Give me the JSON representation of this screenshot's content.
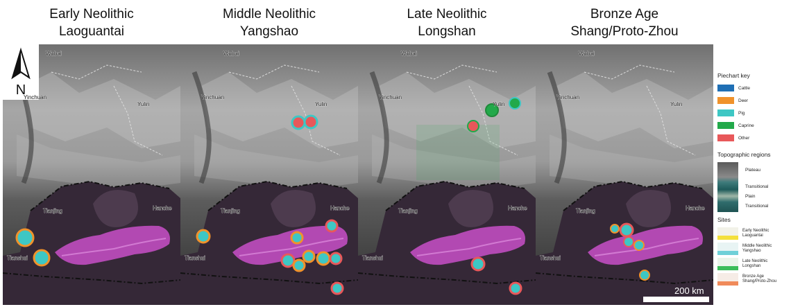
{
  "panels": [
    {
      "title_line1": "Early Neolithic",
      "title_line2": "Laoguantai"
    },
    {
      "title_line1": "Middle Neolithic",
      "title_line2": "Yangshao"
    },
    {
      "title_line1": "Late Neolithic",
      "title_line2": "Longshan"
    },
    {
      "title_line1": "Bronze Age",
      "title_line2": "Shang/Proto-Zhou"
    }
  ],
  "north_arrow": {
    "label": "N",
    "icon": "north-arrow-icon"
  },
  "place_labels": {
    "wubai": "Wubai",
    "yinchuan": "Yinchuan",
    "yulin": "Yulin",
    "hancheng": "Hanche",
    "tianjing": "Tianjing",
    "tianshui": "Tianshui"
  },
  "legend": {
    "piechart_title": "Piechart key",
    "categories": [
      {
        "name": "Cattle",
        "color": "#1f6fb5"
      },
      {
        "name": "Deer",
        "color": "#f0922b"
      },
      {
        "name": "Pig",
        "color": "#3ec7c4"
      },
      {
        "name": "Caprine",
        "color": "#22a94a"
      },
      {
        "name": "Other",
        "color": "#e8585a"
      }
    ],
    "topo_title": "Topographic regions",
    "topo_labels": {
      "plateau": "Plateau",
      "transitional1": "Transitional",
      "plain": "Plain",
      "transitional2": "Transitional"
    },
    "sites_title": "Sites",
    "sites": [
      {
        "line1": "Early Neolithic",
        "line2": "Laoguantai",
        "color": "#f4e03c"
      },
      {
        "line1": "Middle Neolithic",
        "line2": "Yangshao",
        "color": "#6fd0d8"
      },
      {
        "line1": "Late Neolithic",
        "line2": "Longshan",
        "color": "#3bbd5a"
      },
      {
        "line1": "Bronze Age",
        "line2": "Shang/Proto-Zhou",
        "color": "#f08a5a"
      }
    ]
  },
  "scale_bar": {
    "label": "200 km"
  }
}
